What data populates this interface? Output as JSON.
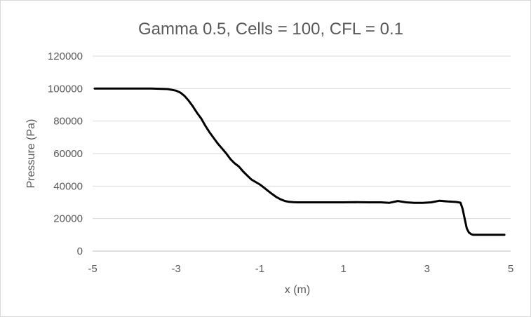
{
  "chart_data": {
    "type": "line",
    "title": "Gamma 0.5, Cells = 100, CFL = 0.1",
    "xlabel": "x (m)",
    "ylabel": "Pressure (Pa)",
    "xlim": [
      -5,
      5
    ],
    "ylim": [
      0,
      120000
    ],
    "x_ticks": [
      -5,
      -3,
      -1,
      1,
      3,
      5
    ],
    "x_tick_labels": [
      "-5",
      "-3",
      "-1",
      "1",
      "3",
      "5"
    ],
    "y_ticks": [
      0,
      20000,
      40000,
      60000,
      80000,
      100000,
      120000
    ],
    "y_tick_labels": [
      "0",
      "20000",
      "40000",
      "60000",
      "80000",
      "100000",
      "120000"
    ],
    "grid": "horizontal",
    "legend": "none",
    "line_color": "#000000",
    "series": [
      {
        "x": [
          -4.95,
          -4.5,
          -4.0,
          -3.6,
          -3.2,
          -3.0,
          -2.9,
          -2.8,
          -2.7,
          -2.6,
          -2.5,
          -2.4,
          -2.3,
          -2.2,
          -2.1,
          -2.0,
          -1.9,
          -1.8,
          -1.7,
          -1.6,
          -1.5,
          -1.4,
          -1.3,
          -1.2,
          -1.1,
          -1.0,
          -0.9,
          -0.8,
          -0.7,
          -0.6,
          -0.5,
          -0.4,
          -0.3,
          -0.2,
          -0.1,
          0.0,
          0.2,
          0.5,
          0.8,
          1.0,
          1.3,
          1.6,
          1.9,
          2.1,
          2.3,
          2.5,
          2.7,
          2.9,
          3.1,
          3.3,
          3.5,
          3.7,
          3.8,
          3.85,
          3.9,
          3.95,
          4.0,
          4.05,
          4.1,
          4.2,
          4.5,
          4.85
        ],
        "y": [
          100000,
          100000,
          100000,
          100000,
          99700,
          98700,
          97500,
          95500,
          92500,
          89000,
          85000,
          81500,
          77000,
          73000,
          69500,
          66000,
          63000,
          60000,
          56500,
          54000,
          52000,
          49000,
          46500,
          44000,
          42500,
          41000,
          39000,
          37000,
          35000,
          33200,
          31800,
          30800,
          30300,
          30100,
          30000,
          30000,
          30000,
          30000,
          30000,
          30000,
          30100,
          30000,
          30000,
          29700,
          30800,
          30000,
          29700,
          29700,
          30000,
          31000,
          30500,
          30200,
          29800,
          26000,
          20000,
          14000,
          11500,
          10500,
          10000,
          10000,
          10000,
          10000
        ]
      }
    ]
  }
}
